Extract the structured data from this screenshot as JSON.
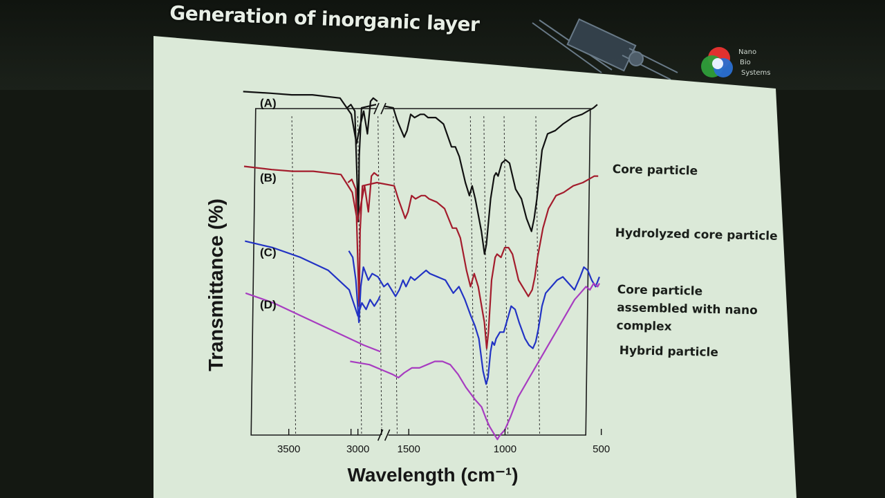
{
  "slide": {
    "title": "Generation of inorganic layer",
    "logo": {
      "lines": [
        "Nano",
        "Bio",
        "Systems"
      ],
      "colors": [
        "#e0312f",
        "#2f9e3a",
        "#2a6fd1"
      ]
    }
  },
  "colors": {
    "slide_bg": "#dbe9d8",
    "A": "#111111",
    "B": "#a31c2c",
    "C": "#2233c4",
    "D": "#a73cc0"
  },
  "chart_data": {
    "type": "line",
    "title": "",
    "xlabel": "Wavelength (cm⁻¹)",
    "ylabel": "Transmittance (%)",
    "x_axis": {
      "reversed": true,
      "broken": true,
      "segments": [
        [
          3800,
          2830
        ],
        [
          1800,
          500
        ]
      ],
      "ticks": [
        "3500",
        "3000",
        "1500",
        "1000",
        "500"
      ]
    },
    "reference_lines": [
      3450,
      1745,
      1640,
      1560,
      1160,
      1090,
      985,
      820
    ],
    "grid": false,
    "series": [
      {
        "name": "Core particle",
        "panel_label": "(A)",
        "points": [
          [
            3800,
            88
          ],
          [
            3600,
            87.5
          ],
          [
            3450,
            87
          ],
          [
            3300,
            87
          ],
          [
            3100,
            86
          ],
          [
            3020,
            81
          ],
          [
            2985,
            72
          ],
          [
            2960,
            77
          ],
          [
            2930,
            82
          ],
          [
            2905,
            75
          ],
          [
            2880,
            85
          ],
          [
            2860,
            86
          ],
          [
            2830,
            85
          ],
          [
            1800,
            83
          ],
          [
            1780,
            84
          ],
          [
            1760,
            82
          ],
          [
            1748,
            48
          ],
          [
            1740,
            68
          ],
          [
            1725,
            83
          ],
          [
            1650,
            84
          ],
          [
            1560,
            83
          ],
          [
            1540,
            79
          ],
          [
            1505,
            74
          ],
          [
            1490,
            76
          ],
          [
            1470,
            81
          ],
          [
            1450,
            80
          ],
          [
            1420,
            81
          ],
          [
            1400,
            81
          ],
          [
            1380,
            80
          ],
          [
            1340,
            80
          ],
          [
            1300,
            78
          ],
          [
            1260,
            71
          ],
          [
            1240,
            71
          ],
          [
            1220,
            68
          ],
          [
            1190,
            60
          ],
          [
            1170,
            56
          ],
          [
            1155,
            59
          ],
          [
            1140,
            55
          ],
          [
            1110,
            45
          ],
          [
            1095,
            38
          ],
          [
            1085,
            41
          ],
          [
            1060,
            55
          ],
          [
            1040,
            62
          ],
          [
            1030,
            63
          ],
          [
            1020,
            62
          ],
          [
            1000,
            66
          ],
          [
            980,
            67
          ],
          [
            960,
            66
          ],
          [
            930,
            58
          ],
          [
            900,
            55
          ],
          [
            875,
            49
          ],
          [
            850,
            45
          ],
          [
            835,
            49
          ],
          [
            820,
            55
          ],
          [
            790,
            70
          ],
          [
            760,
            75
          ],
          [
            720,
            76
          ],
          [
            680,
            78
          ],
          [
            630,
            80
          ],
          [
            580,
            81
          ],
          [
            550,
            82
          ],
          [
            520,
            83
          ],
          [
            500,
            84
          ]
        ]
      },
      {
        "name": "Hydrolyzed core particle",
        "panel_label": "(B)",
        "points": [
          [
            3800,
            65
          ],
          [
            3600,
            64
          ],
          [
            3450,
            63.5
          ],
          [
            3300,
            63.5
          ],
          [
            3100,
            62.5
          ],
          [
            3020,
            57
          ],
          [
            2985,
            48
          ],
          [
            2960,
            53
          ],
          [
            2930,
            59
          ],
          [
            2905,
            51
          ],
          [
            2880,
            62
          ],
          [
            2860,
            63
          ],
          [
            2830,
            62
          ],
          [
            1800,
            60
          ],
          [
            1780,
            61
          ],
          [
            1760,
            58
          ],
          [
            1750,
            22
          ],
          [
            1740,
            45
          ],
          [
            1725,
            59
          ],
          [
            1650,
            60
          ],
          [
            1560,
            59
          ],
          [
            1540,
            55
          ],
          [
            1505,
            49
          ],
          [
            1490,
            51
          ],
          [
            1470,
            56
          ],
          [
            1450,
            55
          ],
          [
            1420,
            56
          ],
          [
            1400,
            56
          ],
          [
            1380,
            55
          ],
          [
            1340,
            54
          ],
          [
            1300,
            52
          ],
          [
            1260,
            46
          ],
          [
            1240,
            46
          ],
          [
            1220,
            43
          ],
          [
            1190,
            33
          ],
          [
            1170,
            28
          ],
          [
            1150,
            32
          ],
          [
            1130,
            28
          ],
          [
            1100,
            17
          ],
          [
            1090,
            9
          ],
          [
            1080,
            14
          ],
          [
            1060,
            30
          ],
          [
            1040,
            37
          ],
          [
            1030,
            38
          ],
          [
            1010,
            37
          ],
          [
            990,
            40
          ],
          [
            970,
            40
          ],
          [
            950,
            38
          ],
          [
            920,
            30
          ],
          [
            890,
            27
          ],
          [
            870,
            25
          ],
          [
            850,
            27
          ],
          [
            835,
            31
          ],
          [
            820,
            37
          ],
          [
            790,
            46
          ],
          [
            760,
            52
          ],
          [
            720,
            56
          ],
          [
            680,
            57
          ],
          [
            630,
            59
          ],
          [
            580,
            60
          ],
          [
            550,
            61
          ],
          [
            520,
            62
          ],
          [
            500,
            62
          ]
        ]
      },
      {
        "name": "Core particle assembled with nano complex",
        "panel_label": "(C)",
        "points": [
          [
            3800,
            42
          ],
          [
            3600,
            40
          ],
          [
            3400,
            37
          ],
          [
            3200,
            33
          ],
          [
            3050,
            27
          ],
          [
            2990,
            19
          ],
          [
            2960,
            23
          ],
          [
            2930,
            21
          ],
          [
            2900,
            24
          ],
          [
            2870,
            22
          ],
          [
            2840,
            24
          ],
          [
            2830,
            25
          ],
          [
            1800,
            39
          ],
          [
            1780,
            37
          ],
          [
            1765,
            30
          ],
          [
            1752,
            17
          ],
          [
            1740,
            28
          ],
          [
            1725,
            34
          ],
          [
            1700,
            30
          ],
          [
            1680,
            32
          ],
          [
            1650,
            31
          ],
          [
            1620,
            28
          ],
          [
            1600,
            29
          ],
          [
            1560,
            25
          ],
          [
            1540,
            27
          ],
          [
            1520,
            30
          ],
          [
            1505,
            28
          ],
          [
            1480,
            31
          ],
          [
            1460,
            30
          ],
          [
            1440,
            31
          ],
          [
            1420,
            32
          ],
          [
            1400,
            33
          ],
          [
            1380,
            32
          ],
          [
            1340,
            31
          ],
          [
            1300,
            30
          ],
          [
            1260,
            26
          ],
          [
            1230,
            28
          ],
          [
            1200,
            24
          ],
          [
            1170,
            19
          ],
          [
            1150,
            16
          ],
          [
            1130,
            12
          ],
          [
            1110,
            2
          ],
          [
            1095,
            -2
          ],
          [
            1085,
            0
          ],
          [
            1070,
            8
          ],
          [
            1060,
            11
          ],
          [
            1050,
            10
          ],
          [
            1040,
            12
          ],
          [
            1020,
            14
          ],
          [
            1000,
            14
          ],
          [
            980,
            18
          ],
          [
            960,
            22
          ],
          [
            940,
            21
          ],
          [
            920,
            17
          ],
          [
            890,
            12
          ],
          [
            870,
            10
          ],
          [
            850,
            9
          ],
          [
            835,
            11
          ],
          [
            820,
            15
          ],
          [
            800,
            22
          ],
          [
            780,
            26
          ],
          [
            750,
            28
          ],
          [
            720,
            30
          ],
          [
            690,
            31
          ],
          [
            660,
            29
          ],
          [
            630,
            27
          ],
          [
            600,
            31
          ],
          [
            580,
            34
          ],
          [
            560,
            33
          ],
          [
            540,
            30
          ],
          [
            520,
            28
          ],
          [
            500,
            31
          ]
        ]
      },
      {
        "name": "Hybrid particle",
        "panel_label": "(D)",
        "points": [
          [
            3800,
            26
          ],
          [
            3600,
            23
          ],
          [
            3400,
            19
          ],
          [
            3200,
            15
          ],
          [
            3050,
            12
          ],
          [
            2950,
            10
          ],
          [
            2830,
            8
          ],
          [
            1800,
            5
          ],
          [
            1700,
            4
          ],
          [
            1620,
            2
          ],
          [
            1580,
            1
          ],
          [
            1550,
            0
          ],
          [
            1520,
            1.5
          ],
          [
            1480,
            3
          ],
          [
            1440,
            3
          ],
          [
            1400,
            4
          ],
          [
            1360,
            5
          ],
          [
            1320,
            5
          ],
          [
            1280,
            4
          ],
          [
            1240,
            1
          ],
          [
            1200,
            -3
          ],
          [
            1150,
            -7
          ],
          [
            1120,
            -9
          ],
          [
            1095,
            -13
          ],
          [
            1080,
            -15
          ],
          [
            1060,
            -17
          ],
          [
            1040,
            -19
          ],
          [
            1030,
            -18
          ],
          [
            1015,
            -17
          ],
          [
            1000,
            -16
          ],
          [
            985,
            -14
          ],
          [
            970,
            -12
          ],
          [
            950,
            -9
          ],
          [
            930,
            -6
          ],
          [
            900,
            -3
          ],
          [
            870,
            0
          ],
          [
            840,
            3
          ],
          [
            810,
            6
          ],
          [
            780,
            9
          ],
          [
            750,
            12
          ],
          [
            720,
            15
          ],
          [
            690,
            18
          ],
          [
            660,
            21
          ],
          [
            630,
            24
          ],
          [
            600,
            26
          ],
          [
            570,
            28
          ],
          [
            550,
            27
          ],
          [
            530,
            29
          ],
          [
            510,
            28
          ],
          [
            500,
            29
          ]
        ]
      }
    ]
  }
}
